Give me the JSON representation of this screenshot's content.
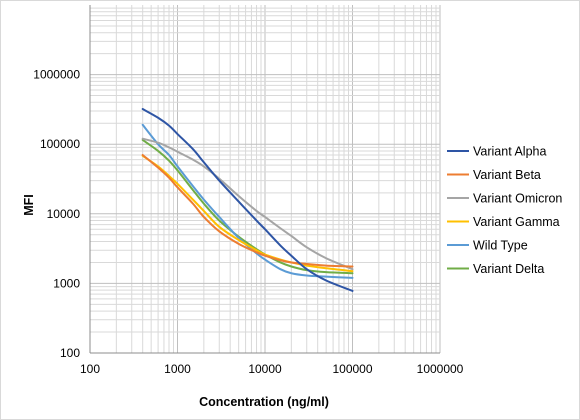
{
  "chart_data": {
    "type": "line",
    "xlabel": "Concentration (ng/ml)",
    "ylabel": "MFI",
    "x_scale": "log",
    "y_scale": "log",
    "xlim": [
      100,
      1000000
    ],
    "ylim": [
      100,
      10000000
    ],
    "x_tick_labels": [
      "100",
      "1000",
      "10000",
      "100000",
      "1000000"
    ],
    "y_tick_labels": [
      "100",
      "1000",
      "10000",
      "100000",
      "1000000"
    ],
    "grid": true,
    "legend_position": "right",
    "series": [
      {
        "name": "Variant Alpha",
        "color": "#2e55a5",
        "x": [
          400,
          600,
          800,
          1000,
          1500,
          2000,
          3000,
          5000,
          8000,
          10000,
          15000,
          20000,
          30000,
          50000,
          100000
        ],
        "y": [
          320000,
          240000,
          185000,
          140000,
          85000,
          55000,
          30000,
          15000,
          8000,
          6000,
          3500,
          2500,
          1600,
          1100,
          780
        ]
      },
      {
        "name": "Variant Beta",
        "color": "#ed7d31",
        "x": [
          400,
          600,
          800,
          1000,
          1500,
          2000,
          3000,
          5000,
          8000,
          10000,
          15000,
          20000,
          30000,
          50000,
          100000
        ],
        "y": [
          70000,
          46000,
          33000,
          24000,
          14000,
          9000,
          5600,
          3700,
          2800,
          2500,
          2150,
          2000,
          1900,
          1800,
          1750
        ]
      },
      {
        "name": "Variant Omicron",
        "color": "#a5a5a5",
        "x": [
          400,
          600,
          800,
          1000,
          1500,
          2000,
          3000,
          5000,
          8000,
          10000,
          15000,
          20000,
          30000,
          50000,
          100000
        ],
        "y": [
          120000,
          105000,
          90000,
          78000,
          60000,
          48000,
          32000,
          18000,
          11000,
          9000,
          6200,
          4800,
          3300,
          2300,
          1600
        ]
      },
      {
        "name": "Variant Gamma",
        "color": "#ffc000",
        "x": [
          400,
          600,
          800,
          1000,
          1500,
          2000,
          3000,
          5000,
          8000,
          10000,
          15000,
          20000,
          30000,
          50000,
          100000
        ],
        "y": [
          68000,
          48000,
          35000,
          27000,
          16000,
          11000,
          6500,
          4200,
          3000,
          2600,
          2200,
          2000,
          1800,
          1650,
          1500
        ]
      },
      {
        "name": "Wild Type",
        "color": "#5b9bd5",
        "x": [
          400,
          600,
          800,
          1000,
          1500,
          2000,
          3000,
          5000,
          8000,
          10000,
          15000,
          20000,
          30000,
          50000,
          100000
        ],
        "y": [
          190000,
          100000,
          70000,
          48000,
          25000,
          16000,
          9000,
          4500,
          2700,
          2200,
          1600,
          1400,
          1300,
          1250,
          1200
        ]
      },
      {
        "name": "Variant Delta",
        "color": "#70ad47",
        "x": [
          400,
          600,
          800,
          1000,
          1500,
          2000,
          3000,
          5000,
          8000,
          10000,
          15000,
          20000,
          30000,
          50000,
          100000
        ],
        "y": [
          115000,
          80000,
          58000,
          42000,
          22000,
          14000,
          8000,
          4700,
          3100,
          2600,
          2000,
          1750,
          1550,
          1450,
          1400
        ]
      }
    ]
  }
}
